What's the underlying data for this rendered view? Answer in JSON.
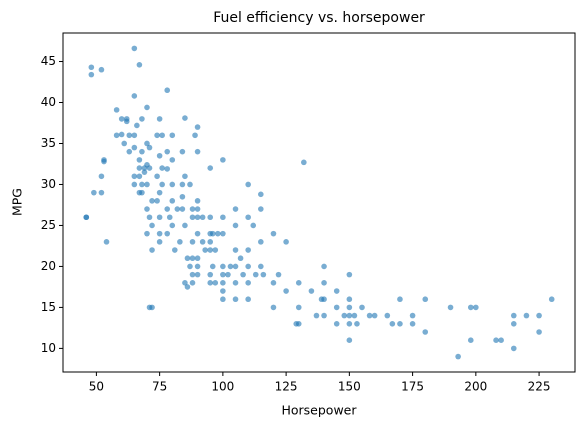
{
  "chart_data": {
    "type": "scatter",
    "title": "Fuel efficiency vs. horsepower",
    "x_label": "Horsepower",
    "y_label": "MPG",
    "color": "#1f77b4",
    "xlim": [
      36.8,
      239.2
    ],
    "ylim": [
      7.12,
      48.48
    ],
    "xticks": [
      50,
      75,
      100,
      125,
      150,
      175,
      200,
      225
    ],
    "yticks": [
      10,
      15,
      20,
      25,
      30,
      35,
      40,
      45
    ],
    "x": [
      46,
      46,
      48,
      48,
      49,
      52,
      52,
      52,
      53,
      53,
      54,
      58,
      58,
      60,
      60,
      61,
      62,
      62,
      63,
      63,
      65,
      65,
      65,
      65,
      65,
      65,
      66,
      67,
      67,
      67,
      67,
      67,
      68,
      68,
      68,
      68,
      69,
      69,
      70,
      70,
      70,
      70,
      70,
      70,
      71,
      71,
      71,
      71,
      72,
      72,
      72,
      72,
      74,
      74,
      74,
      75,
      75,
      75,
      75,
      75,
      75,
      76,
      76,
      76,
      78,
      78,
      78,
      78,
      78,
      79,
      80,
      80,
      80,
      80,
      80,
      81,
      82,
      83,
      84,
      84,
      84,
      84,
      85,
      85,
      85,
      85,
      86,
      86,
      87,
      87,
      88,
      88,
      88,
      88,
      88,
      88,
      89,
      90,
      90,
      90,
      90,
      90,
      90,
      90,
      90,
      90,
      92,
      92,
      93,
      95,
      95,
      95,
      95,
      95,
      95,
      95,
      96,
      96,
      97,
      97,
      98,
      100,
      100,
      100,
      100,
      100,
      100,
      100,
      100,
      102,
      103,
      105,
      105,
      105,
      105,
      105,
      105,
      107,
      108,
      110,
      110,
      110,
      110,
      110,
      110,
      112,
      113,
      115,
      115,
      115,
      115,
      116,
      120,
      120,
      120,
      122,
      125,
      125,
      129,
      130,
      130,
      130,
      132,
      135,
      137,
      139,
      140,
      140,
      140,
      140,
      145,
      145,
      145,
      148,
      150,
      150,
      150,
      150,
      150,
      150,
      152,
      153,
      155,
      158,
      160,
      165,
      167,
      170,
      170,
      175,
      175,
      180,
      180,
      190,
      193,
      198,
      198,
      200,
      208,
      210,
      215,
      215,
      215,
      220,
      225,
      225,
      230
    ],
    "y": [
      26,
      26,
      43.4,
      44.3,
      29,
      44,
      29,
      31,
      32.8,
      33,
      23,
      39.1,
      36,
      36.1,
      38,
      35,
      37.7,
      38,
      36,
      34,
      46.6,
      40.8,
      36,
      34.5,
      31,
      30,
      37.2,
      44.6,
      33,
      31,
      29,
      32,
      34,
      38,
      29,
      30,
      32,
      31.5,
      39.4,
      35,
      32.4,
      30,
      27,
      24,
      15,
      34.5,
      32,
      26,
      15,
      28,
      25,
      22,
      36,
      31,
      28,
      33.5,
      29,
      26,
      24,
      23,
      38,
      36,
      30,
      32,
      41.5,
      34,
      31.9,
      27,
      24,
      26,
      36,
      33,
      30,
      28,
      25,
      22,
      27,
      23,
      34,
      30,
      27,
      28.5,
      38.1,
      31,
      25,
      18,
      21,
      17.5,
      20,
      30,
      27,
      23,
      21,
      19,
      26,
      18,
      36,
      37,
      34,
      28,
      26,
      24,
      20,
      19,
      21,
      27,
      26,
      23,
      22,
      32,
      26,
      24,
      23,
      22,
      19,
      18,
      24,
      20,
      18,
      22,
      24,
      33,
      26,
      24,
      19,
      18,
      17,
      16,
      20,
      19,
      20,
      27,
      25,
      22,
      20,
      18,
      16,
      21,
      19,
      30,
      26,
      22,
      20,
      18,
      16,
      25,
      19,
      28.8,
      27,
      20,
      23,
      19,
      24,
      18,
      15,
      19,
      23,
      17,
      13,
      13,
      18,
      15,
      32.7,
      17,
      14,
      16,
      20,
      18,
      16,
      14,
      17,
      15,
      13,
      14,
      19,
      16,
      15,
      14,
      13,
      11,
      14,
      13,
      15,
      14,
      14,
      14,
      13,
      16,
      13,
      14,
      13,
      16,
      12,
      15,
      9,
      15,
      11,
      15,
      11,
      11,
      10,
      14,
      13,
      14,
      14,
      12,
      16
    ]
  }
}
